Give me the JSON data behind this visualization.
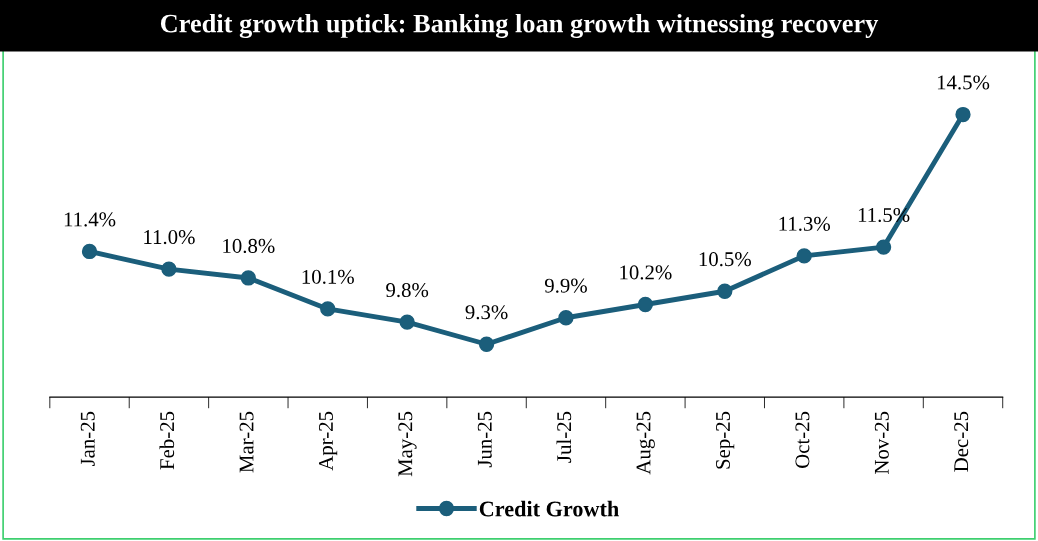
{
  "chart_data": {
    "type": "line",
    "title": "Credit growth uptick: Banking loan growth witnessing recovery",
    "categories": [
      "Jan-25",
      "Feb-25",
      "Mar-25",
      "Apr-25",
      "May-25",
      "Jun-25",
      "Jul-25",
      "Aug-25",
      "Sep-25",
      "Oct-25",
      "Nov-25",
      "Dec-25"
    ],
    "series": [
      {
        "name": "Credit Growth",
        "color": "#1b5e7b",
        "values": [
          11.4,
          11.0,
          10.8,
          10.1,
          9.8,
          9.3,
          9.9,
          10.2,
          10.5,
          11.3,
          11.5,
          14.5
        ],
        "value_labels": [
          "11.4%",
          "11.0%",
          "10.8%",
          "10.1%",
          "9.8%",
          "9.3%",
          "9.9%",
          "10.2%",
          "10.5%",
          "11.3%",
          "11.5%",
          "14.5%"
        ]
      }
    ],
    "tick_labels": "x",
    "marker": "circle",
    "line_style": "solid",
    "legend": "bottom",
    "grid": false
  }
}
